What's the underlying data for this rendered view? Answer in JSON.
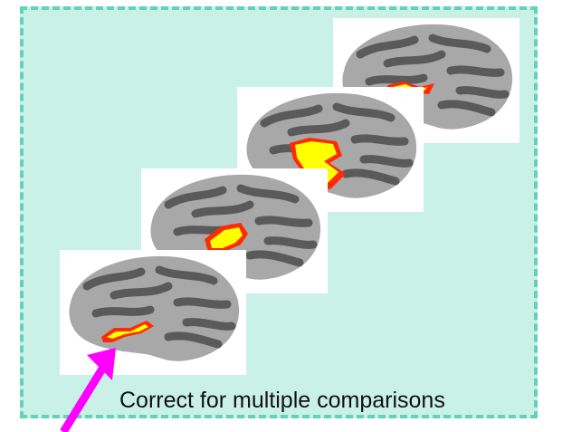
{
  "caption": "Correct for multiple comparisons",
  "colors": {
    "panel_background": "#c9f1e7",
    "panel_border": "#63d3b5",
    "arrow": "#ff00ff",
    "brain_light": "#a8a8a8",
    "brain_dark": "#5a5a5a",
    "activation_hot": "#ffff00",
    "activation_edge": "#ff2a00"
  },
  "brains": [
    {
      "name": "brain-map-4",
      "icon": "inflated-brain-icon"
    },
    {
      "name": "brain-map-3",
      "icon": "inflated-brain-icon"
    },
    {
      "name": "brain-map-2",
      "icon": "inflated-brain-icon"
    },
    {
      "name": "brain-map-1",
      "icon": "inflated-brain-icon"
    }
  ]
}
